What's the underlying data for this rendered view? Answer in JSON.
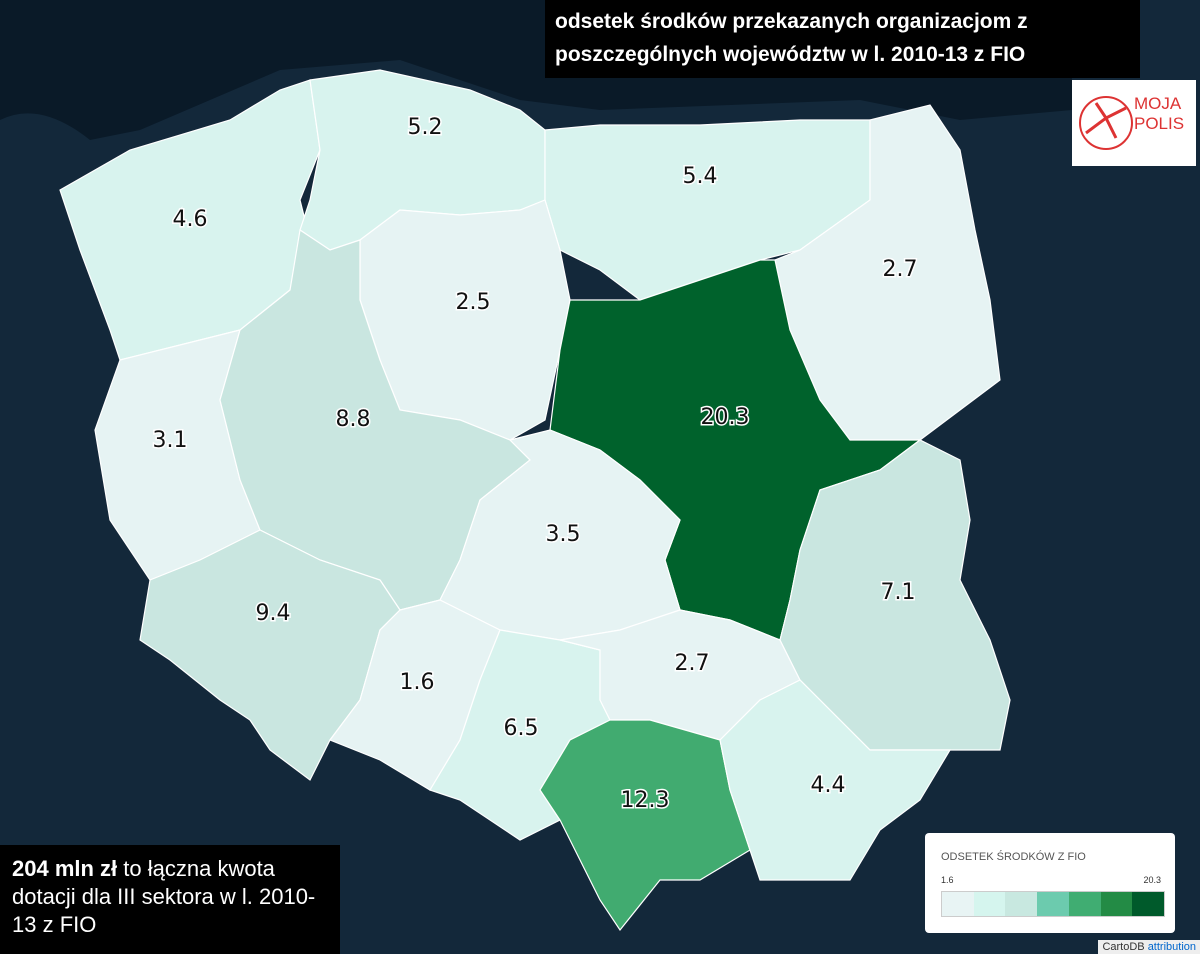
{
  "title": "odsetek środków przekazanych organizacjom z poszczególnych województw w l. 2010-13 z FIO",
  "logo": {
    "line1": "MOJA",
    "line2": "POLIS"
  },
  "summary": {
    "bold": "204 mln zł",
    "text": "to łączna kwota dotacji dla III sektora w l. 2010-13 z FIO"
  },
  "map": {
    "values": [
      4.6,
      5.2,
      5.4,
      2.7,
      2.5,
      20.3,
      3.1,
      8.8,
      3.5,
      9.4,
      1.6,
      6.5,
      2.7,
      7.1,
      12.3,
      4.4
    ],
    "colors": [
      "#d8f3ee",
      "#d8f3ee",
      "#d8f3ee",
      "#e6f3f3",
      "#e6f3f3",
      "#00622c",
      "#e6f3f3",
      "#c9e6e0",
      "#e6f3f3",
      "#c9e6e0",
      "#e6f3f3",
      "#d8f3ee",
      "#e6f3f3",
      "#c9e6e0",
      "#41ab70",
      "#d8f3ee"
    ]
  },
  "legend": {
    "title": "ODSETEK ŚRODKÓW Z FIO",
    "min": 1.6,
    "max": 20.3,
    "colors": [
      "#e8f4f4",
      "#d5f5ee",
      "#c8e8e0",
      "#6ccbae",
      "#40ad72",
      "#238b45",
      "#005a2b"
    ]
  },
  "attribution": {
    "text": "CartoDB",
    "link": "attribution"
  }
}
